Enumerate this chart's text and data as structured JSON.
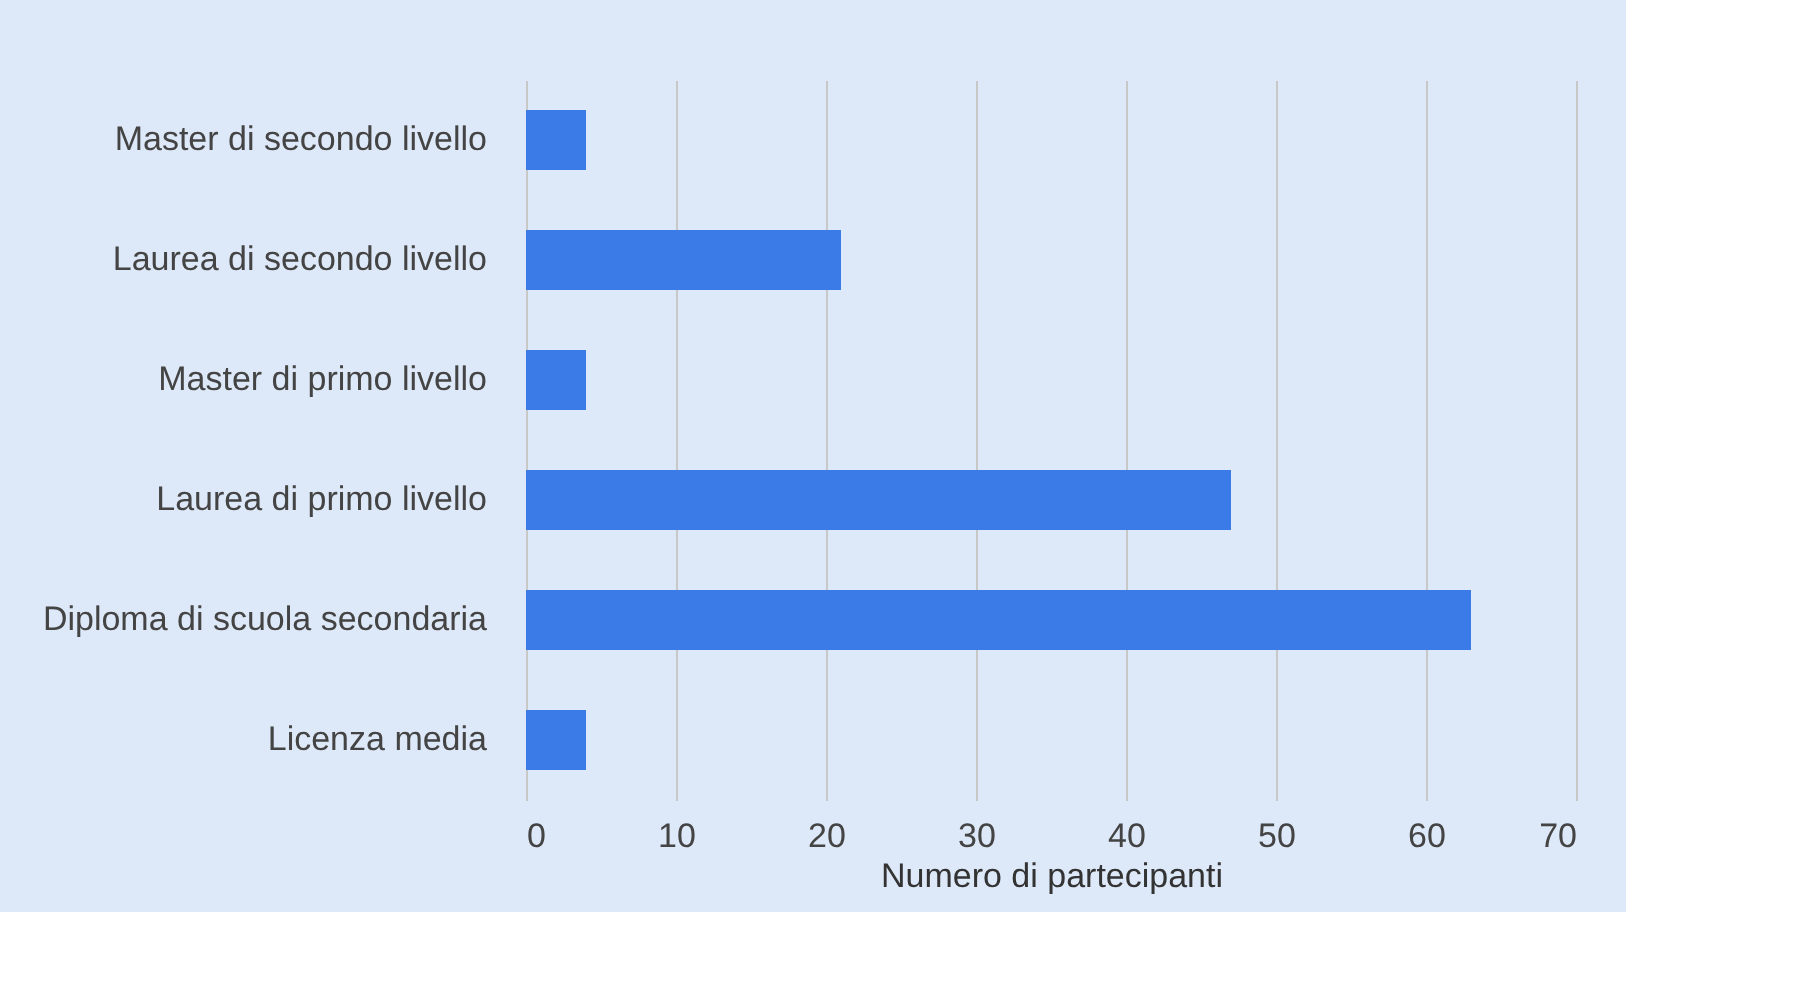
{
  "chart_data": {
    "type": "bar",
    "orientation": "horizontal",
    "xlabel": "Numero di partecipanti",
    "categories": [
      "Master di secondo livello",
      "Laurea di secondo livello",
      "Master di primo livello",
      "Laurea di primo livello",
      "Diploma di scuola secondaria",
      "Licenza media"
    ],
    "values": [
      4,
      21,
      4,
      47,
      63,
      4
    ],
    "color": "#3a7be8",
    "xlim": [
      0,
      70
    ],
    "xticks": [
      0,
      10,
      20,
      30,
      40,
      50,
      60,
      70
    ],
    "grid": "x"
  }
}
